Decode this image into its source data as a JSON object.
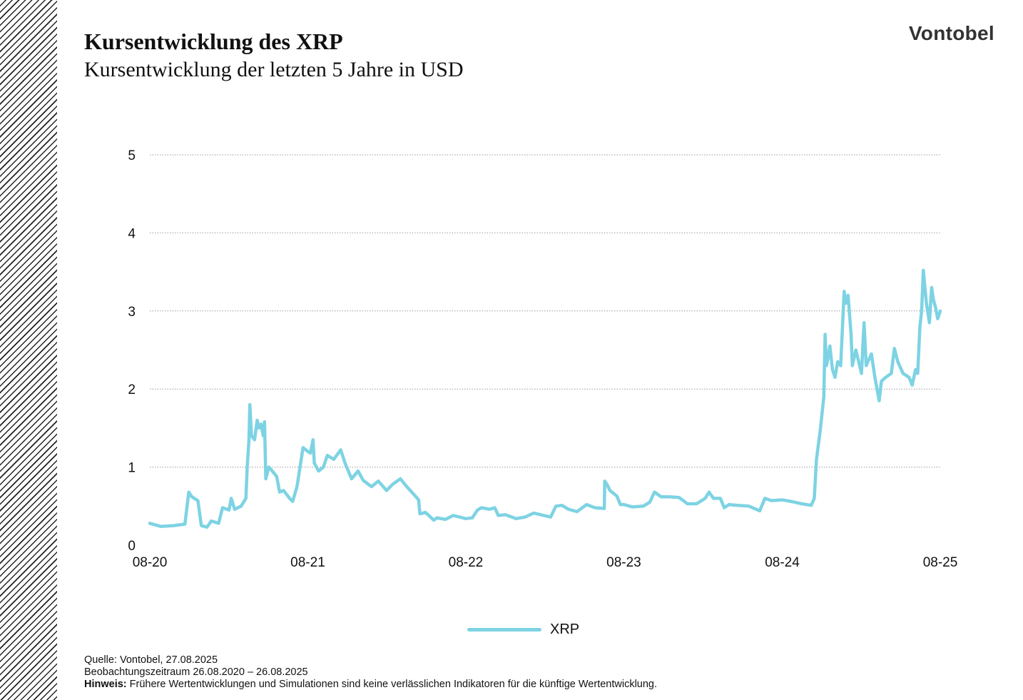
{
  "header": {
    "title": "Kursentwicklung des XRP",
    "subtitle": "Kursentwicklung der letzten 5 Jahre in USD",
    "logo": "Vontobel"
  },
  "colors": {
    "series": "#7dd3e3",
    "gridline": "#9a9a9a",
    "hatch": "#222222"
  },
  "chart_data": {
    "type": "line",
    "title": "Kursentwicklung des XRP",
    "subtitle": "Kursentwicklung der letzten 5 Jahre in USD",
    "xlabel": "",
    "ylabel": "",
    "ylim": [
      0,
      5
    ],
    "yticks": [
      "0",
      "1",
      "2",
      "3",
      "4",
      "5"
    ],
    "xlim": [
      "2020-08-26",
      "2025-08-26"
    ],
    "xticks": [
      {
        "label": "08-20",
        "date": "2020-08-26"
      },
      {
        "label": "08-21",
        "date": "2021-08-26"
      },
      {
        "label": "08-22",
        "date": "2022-08-26"
      },
      {
        "label": "08-23",
        "date": "2023-08-26"
      },
      {
        "label": "08-24",
        "date": "2024-08-26"
      },
      {
        "label": "08-25",
        "date": "2025-08-26"
      }
    ],
    "grid": "horizontal dotted",
    "legend_position": "bottom-center",
    "series": [
      {
        "name": "XRP",
        "points": [
          [
            "2020-08-26",
            0.28
          ],
          [
            "2020-09-20",
            0.24
          ],
          [
            "2020-10-20",
            0.25
          ],
          [
            "2020-11-15",
            0.27
          ],
          [
            "2020-11-24",
            0.68
          ],
          [
            "2020-12-01",
            0.62
          ],
          [
            "2020-12-15",
            0.57
          ],
          [
            "2020-12-23",
            0.25
          ],
          [
            "2021-01-05",
            0.23
          ],
          [
            "2021-01-15",
            0.31
          ],
          [
            "2021-02-01",
            0.28
          ],
          [
            "2021-02-10",
            0.48
          ],
          [
            "2021-02-25",
            0.45
          ],
          [
            "2021-03-02",
            0.6
          ],
          [
            "2021-03-10",
            0.46
          ],
          [
            "2021-03-25",
            0.5
          ],
          [
            "2021-04-05",
            0.6
          ],
          [
            "2021-04-08",
            1.0
          ],
          [
            "2021-04-12",
            1.35
          ],
          [
            "2021-04-14",
            1.8
          ],
          [
            "2021-04-18",
            1.4
          ],
          [
            "2021-04-25",
            1.35
          ],
          [
            "2021-05-01",
            1.6
          ],
          [
            "2021-05-05",
            1.5
          ],
          [
            "2021-05-10",
            1.55
          ],
          [
            "2021-05-15",
            1.4
          ],
          [
            "2021-05-18",
            1.58
          ],
          [
            "2021-05-21",
            0.85
          ],
          [
            "2021-05-28",
            1.0
          ],
          [
            "2021-06-05",
            0.95
          ],
          [
            "2021-06-15",
            0.88
          ],
          [
            "2021-06-22",
            0.68
          ],
          [
            "2021-07-01",
            0.7
          ],
          [
            "2021-07-15",
            0.6
          ],
          [
            "2021-07-22",
            0.56
          ],
          [
            "2021-08-01",
            0.75
          ],
          [
            "2021-08-15",
            1.25
          ],
          [
            "2021-08-26",
            1.2
          ],
          [
            "2021-09-01",
            1.18
          ],
          [
            "2021-09-07",
            1.35
          ],
          [
            "2021-09-10",
            1.05
          ],
          [
            "2021-09-20",
            0.95
          ],
          [
            "2021-10-01",
            1.0
          ],
          [
            "2021-10-10",
            1.15
          ],
          [
            "2021-10-25",
            1.1
          ],
          [
            "2021-11-10",
            1.22
          ],
          [
            "2021-11-20",
            1.05
          ],
          [
            "2021-12-05",
            0.85
          ],
          [
            "2021-12-20",
            0.95
          ],
          [
            "2022-01-01",
            0.83
          ],
          [
            "2022-01-20",
            0.75
          ],
          [
            "2022-02-05",
            0.82
          ],
          [
            "2022-02-24",
            0.7
          ],
          [
            "2022-03-10",
            0.78
          ],
          [
            "2022-03-28",
            0.85
          ],
          [
            "2022-04-10",
            0.76
          ],
          [
            "2022-04-28",
            0.65
          ],
          [
            "2022-05-09",
            0.58
          ],
          [
            "2022-05-12",
            0.4
          ],
          [
            "2022-05-25",
            0.42
          ],
          [
            "2022-06-13",
            0.32
          ],
          [
            "2022-06-20",
            0.35
          ],
          [
            "2022-07-10",
            0.33
          ],
          [
            "2022-07-28",
            0.38
          ],
          [
            "2022-08-26",
            0.34
          ],
          [
            "2022-09-10",
            0.35
          ],
          [
            "2022-09-22",
            0.45
          ],
          [
            "2022-10-01",
            0.48
          ],
          [
            "2022-10-20",
            0.46
          ],
          [
            "2022-11-01",
            0.48
          ],
          [
            "2022-11-09",
            0.38
          ],
          [
            "2022-11-25",
            0.39
          ],
          [
            "2022-12-20",
            0.34
          ],
          [
            "2023-01-10",
            0.36
          ],
          [
            "2023-01-30",
            0.41
          ],
          [
            "2023-02-15",
            0.39
          ],
          [
            "2023-03-10",
            0.36
          ],
          [
            "2023-03-22",
            0.5
          ],
          [
            "2023-04-05",
            0.51
          ],
          [
            "2023-04-20",
            0.46
          ],
          [
            "2023-05-10",
            0.43
          ],
          [
            "2023-06-01",
            0.52
          ],
          [
            "2023-06-20",
            0.48
          ],
          [
            "2023-07-12",
            0.47
          ],
          [
            "2023-07-13",
            0.82
          ],
          [
            "2023-07-18",
            0.78
          ],
          [
            "2023-07-25",
            0.7
          ],
          [
            "2023-08-10",
            0.63
          ],
          [
            "2023-08-18",
            0.52
          ],
          [
            "2023-08-26",
            0.52
          ],
          [
            "2023-09-15",
            0.49
          ],
          [
            "2023-10-10",
            0.5
          ],
          [
            "2023-10-25",
            0.55
          ],
          [
            "2023-11-05",
            0.68
          ],
          [
            "2023-11-20",
            0.62
          ],
          [
            "2023-12-10",
            0.62
          ],
          [
            "2024-01-01",
            0.61
          ],
          [
            "2024-01-20",
            0.53
          ],
          [
            "2024-02-10",
            0.53
          ],
          [
            "2024-03-01",
            0.6
          ],
          [
            "2024-03-10",
            0.68
          ],
          [
            "2024-03-20",
            0.6
          ],
          [
            "2024-04-05",
            0.6
          ],
          [
            "2024-04-14",
            0.48
          ],
          [
            "2024-04-25",
            0.52
          ],
          [
            "2024-05-15",
            0.51
          ],
          [
            "2024-06-10",
            0.5
          ],
          [
            "2024-07-05",
            0.44
          ],
          [
            "2024-07-17",
            0.6
          ],
          [
            "2024-08-01",
            0.57
          ],
          [
            "2024-08-26",
            0.58
          ],
          [
            "2024-09-15",
            0.56
          ],
          [
            "2024-10-10",
            0.53
          ],
          [
            "2024-11-01",
            0.51
          ],
          [
            "2024-11-08",
            0.6
          ],
          [
            "2024-11-13",
            1.1
          ],
          [
            "2024-11-22",
            1.48
          ],
          [
            "2024-11-30",
            1.9
          ],
          [
            "2024-12-03",
            2.7
          ],
          [
            "2024-12-06",
            2.3
          ],
          [
            "2024-12-10",
            2.4
          ],
          [
            "2024-12-14",
            2.55
          ],
          [
            "2024-12-20",
            2.25
          ],
          [
            "2024-12-26",
            2.15
          ],
          [
            "2025-01-01",
            2.35
          ],
          [
            "2025-01-08",
            2.3
          ],
          [
            "2025-01-16",
            3.25
          ],
          [
            "2025-01-20",
            3.1
          ],
          [
            "2025-01-25",
            3.2
          ],
          [
            "2025-02-01",
            2.7
          ],
          [
            "2025-02-04",
            2.3
          ],
          [
            "2025-02-12",
            2.5
          ],
          [
            "2025-02-25",
            2.2
          ],
          [
            "2025-03-03",
            2.85
          ],
          [
            "2025-03-08",
            2.3
          ],
          [
            "2025-03-20",
            2.45
          ],
          [
            "2025-03-28",
            2.15
          ],
          [
            "2025-04-07",
            1.85
          ],
          [
            "2025-04-12",
            2.1
          ],
          [
            "2025-04-22",
            2.15
          ],
          [
            "2025-05-05",
            2.2
          ],
          [
            "2025-05-12",
            2.52
          ],
          [
            "2025-05-20",
            2.35
          ],
          [
            "2025-06-01",
            2.2
          ],
          [
            "2025-06-15",
            2.15
          ],
          [
            "2025-06-22",
            2.05
          ],
          [
            "2025-06-30",
            2.25
          ],
          [
            "2025-07-05",
            2.2
          ],
          [
            "2025-07-10",
            2.8
          ],
          [
            "2025-07-14",
            3.0
          ],
          [
            "2025-07-18",
            3.52
          ],
          [
            "2025-07-25",
            3.1
          ],
          [
            "2025-08-01",
            2.85
          ],
          [
            "2025-08-06",
            3.3
          ],
          [
            "2025-08-10",
            3.15
          ],
          [
            "2025-08-15",
            3.05
          ],
          [
            "2025-08-20",
            2.9
          ],
          [
            "2025-08-26",
            3.0
          ]
        ]
      }
    ]
  },
  "legend": {
    "label": "XRP"
  },
  "footer": {
    "source": "Quelle: Vontobel, 27.08.2025",
    "period": "Beobachtungszeitraum  26.08.2020 – 26.08.2025",
    "note_label": "Hinweis:",
    "note_text": " Frühere Wertentwicklungen und Simulationen sind keine verlässlichen Indikatoren für die künftige Wertentwicklung."
  }
}
